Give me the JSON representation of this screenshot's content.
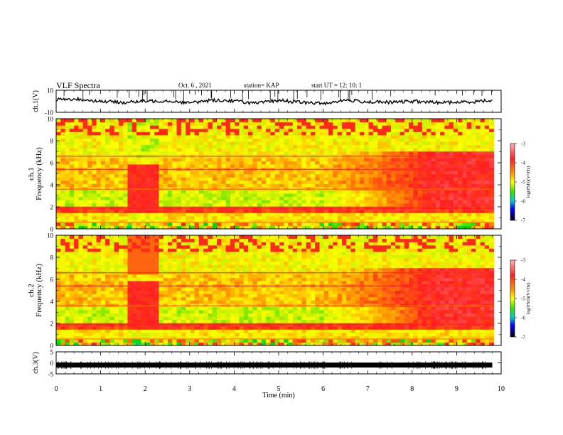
{
  "header": {
    "title": "VLF Spectra",
    "date": "Oct. 6 , 2021",
    "station": "station= KAP",
    "start": "start UT = 12: 10: 1"
  },
  "chart_data": [
    {
      "type": "line",
      "panel": "ch1-waveform",
      "ylabel": "ch.1(V)",
      "ylim": [
        -10,
        10
      ],
      "ytick_labels": [
        "10",
        "-10"
      ],
      "xlim": [
        0,
        10
      ],
      "x": [
        0,
        0.5,
        1,
        1.5,
        2,
        2.5,
        3,
        3.5,
        4,
        4.5,
        5,
        5.5,
        6,
        6.5,
        7,
        7.5,
        8,
        8.5,
        9,
        9.5,
        9.8
      ],
      "values": [
        1.5,
        2,
        0,
        -1,
        0,
        0.5,
        -1.5,
        1,
        0.5,
        -2,
        1,
        -1,
        -2,
        1,
        -0.5,
        -1,
        0,
        -1,
        -1,
        0,
        1
      ]
    },
    {
      "type": "heatmap",
      "panel": "ch1-spectrogram",
      "ylabel": "ch.1\nFrequency (kHz)",
      "ylim": [
        0,
        10
      ],
      "ytick_labels": [
        "0",
        "2",
        "4",
        "6",
        "8",
        "10"
      ],
      "xlim": [
        0,
        10
      ],
      "colorbar": {
        "label": "log(PSD)(V²/Hz)",
        "range": [
          -7,
          -3
        ],
        "tick_labels": [
          "-3",
          "-4",
          "-5",
          "-6",
          "-7"
        ],
        "colors": [
          "#ff9a9a",
          "#ff0000",
          "#ffa500",
          "#ffff00",
          "#80ff00",
          "#00dd00",
          "#00c8c8",
          "#0000ff",
          "#000080",
          "#000000"
        ]
      }
    },
    {
      "type": "heatmap",
      "panel": "ch2-spectrogram",
      "ylabel": "ch.2\nFrequency (kHz)",
      "ylim": [
        0,
        10
      ],
      "ytick_labels": [
        "0",
        "2",
        "4",
        "6",
        "8",
        "10"
      ],
      "xlim": [
        0,
        10
      ],
      "colorbar": {
        "label": "log(PSD)(V²/Hz)",
        "range": [
          -7,
          -3
        ],
        "tick_labels": [
          "-3",
          "-4",
          "-5",
          "-6",
          "-7"
        ]
      }
    },
    {
      "type": "line",
      "panel": "ch3-waveform",
      "ylabel": "ch.3(V)",
      "ylim": [
        -5,
        5
      ],
      "ytick_labels": [
        "5",
        "0",
        "-5"
      ],
      "xlim": [
        0,
        10
      ],
      "x": [
        0,
        9.8
      ],
      "values": [
        -1,
        -1
      ],
      "xlabel": "Time (min)",
      "xtick_labels": [
        "0",
        "1",
        "2",
        "3",
        "4",
        "5",
        "6",
        "7",
        "8",
        "9",
        "10"
      ]
    }
  ]
}
